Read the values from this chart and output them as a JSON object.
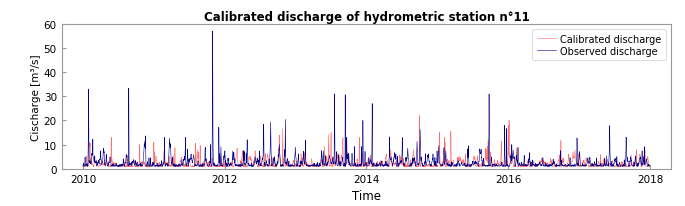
{
  "title": "Calibrated discharge of hydrometric station n°11",
  "xlabel": "Time",
  "ylabel": "Cischarge [m³/s]",
  "ylim": [
    0,
    60
  ],
  "yticks": [
    0,
    10,
    20,
    30,
    40,
    50,
    60
  ],
  "xlim_start": 2009.7,
  "xlim_end": 2018.3,
  "xticks": [
    2010,
    2012,
    2014,
    2016,
    2018
  ],
  "calibrated_color": "#FF6B6B",
  "observed_color": "#00008B",
  "legend_labels": [
    "Calibrated discharge",
    "Observed discharge"
  ],
  "linewidth": 0.4,
  "background_color": "#FFFFFF",
  "n_days": 2922,
  "seed": 42
}
